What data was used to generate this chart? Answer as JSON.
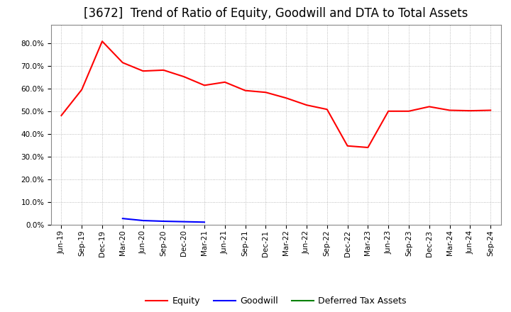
{
  "title": "[3672]  Trend of Ratio of Equity, Goodwill and DTA to Total Assets",
  "x_labels": [
    "Jun-19",
    "Sep-19",
    "Dec-19",
    "Mar-20",
    "Jun-20",
    "Sep-20",
    "Dec-20",
    "Mar-21",
    "Jun-21",
    "Sep-21",
    "Dec-21",
    "Mar-22",
    "Jun-22",
    "Sep-22",
    "Dec-22",
    "Mar-23",
    "Jun-23",
    "Sep-23",
    "Dec-23",
    "Mar-24",
    "Jun-24",
    "Sep-24"
  ],
  "equity": [
    0.481,
    0.595,
    0.808,
    0.714,
    0.677,
    0.681,
    0.652,
    0.614,
    0.628,
    0.591,
    0.583,
    0.558,
    0.527,
    0.508,
    0.347,
    0.34,
    0.5,
    0.5,
    0.52,
    0.504,
    0.502,
    0.504
  ],
  "goodwill": [
    null,
    null,
    null,
    0.027,
    0.018,
    0.015,
    0.013,
    0.011,
    null,
    null,
    null,
    null,
    null,
    null,
    null,
    null,
    null,
    null,
    null,
    null,
    null,
    null
  ],
  "dta": [
    null,
    null,
    null,
    null,
    null,
    null,
    null,
    null,
    null,
    null,
    null,
    null,
    null,
    null,
    null,
    null,
    null,
    null,
    null,
    null,
    null,
    null
  ],
  "equity_color": "#FF0000",
  "goodwill_color": "#0000FF",
  "dta_color": "#008000",
  "background_color": "#FFFFFF",
  "grid_color": "#AAAAAA",
  "ylim": [
    0.0,
    0.88
  ],
  "yticks": [
    0.0,
    0.1,
    0.2,
    0.3,
    0.4,
    0.5,
    0.6,
    0.7,
    0.8
  ],
  "title_fontsize": 12,
  "tick_fontsize": 7.5,
  "legend_labels": [
    "Equity",
    "Goodwill",
    "Deferred Tax Assets"
  ],
  "legend_fontsize": 9
}
